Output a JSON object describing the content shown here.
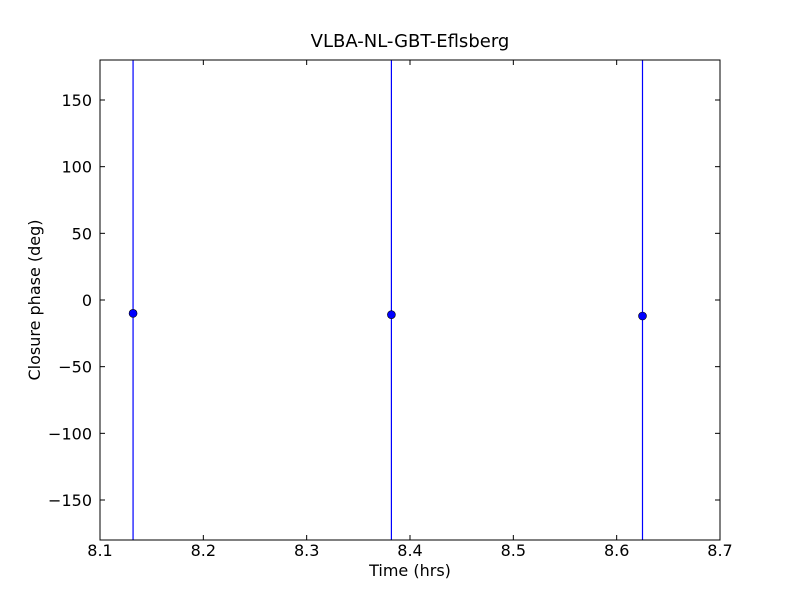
{
  "chart_data": {
    "type": "errorbar-scatter",
    "title": "VLBA-NL-GBT-Eflsberg",
    "x_label": "Time (hrs)",
    "y_label": "Closure phase (deg)",
    "x": [
      8.132,
      8.382,
      8.625
    ],
    "values": [
      -10,
      -11,
      -12
    ],
    "errors": [
      200,
      200,
      200
    ],
    "color": "#0000ff",
    "xlim": [
      8.1,
      8.7
    ],
    "xticks": [
      8.1,
      8.2,
      8.3,
      8.4,
      8.5,
      8.6,
      8.7
    ],
    "ylim": [
      -180,
      180
    ],
    "yticks": [
      {
        "value": -150,
        "label": "−150"
      },
      {
        "value": -100,
        "label": "−100"
      },
      {
        "value": -50,
        "label": "−50"
      },
      0,
      50,
      100,
      150
    ]
  }
}
